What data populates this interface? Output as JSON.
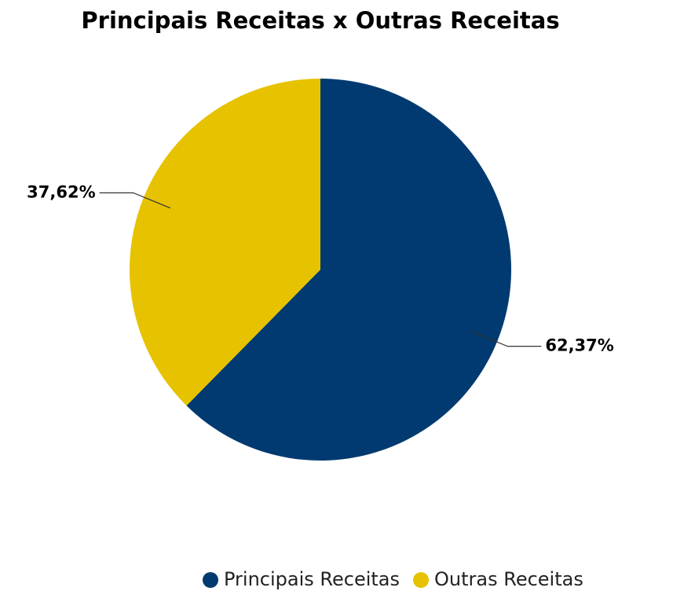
{
  "chart_data": {
    "type": "pie",
    "title": "Principais Receitas x Outras Receitas",
    "categories": [
      "Principais Receitas",
      "Outras Receitas"
    ],
    "values": [
      62.37,
      37.62
    ],
    "value_labels": [
      "62,37%",
      "37,62%"
    ],
    "colors": [
      "#003a70",
      "#e6c200"
    ],
    "legend": "bottom"
  }
}
